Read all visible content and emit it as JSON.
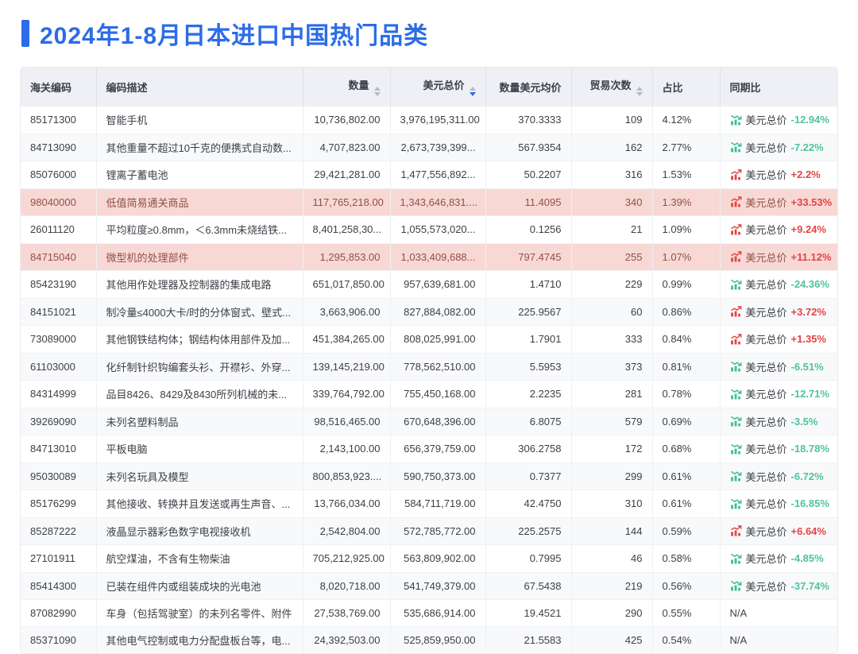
{
  "page": {
    "title": "2024年1-8月日本进口中国热门品类"
  },
  "colors": {
    "accent": "#2b6ce8",
    "positive_red": "#e24545",
    "negative_green": "#4fc49a",
    "highlight_row_bg": "#f8d8d4",
    "highlight_row_text": "#915049",
    "header_bg": "#eef0f6"
  },
  "icons": {
    "sort": "sort-arrows-icon",
    "trend_up": "chart-increasing-icon",
    "trend_down": "chart-decreasing-icon"
  },
  "table": {
    "columns": [
      {
        "key": "code",
        "label": "海关编码",
        "sortable": false,
        "sort": "none",
        "align": "left"
      },
      {
        "key": "desc",
        "label": "编码描述",
        "sortable": false,
        "sort": "none",
        "align": "left"
      },
      {
        "key": "qty",
        "label": "数量",
        "sortable": true,
        "sort": "none",
        "align": "right"
      },
      {
        "key": "usd",
        "label": "美元总价",
        "sortable": true,
        "sort": "desc",
        "align": "right"
      },
      {
        "key": "avg",
        "label": "数量美元均价",
        "sortable": false,
        "sort": "none",
        "align": "right"
      },
      {
        "key": "trades",
        "label": "贸易次数",
        "sortable": true,
        "sort": "none",
        "align": "right"
      },
      {
        "key": "share",
        "label": "占比",
        "sortable": false,
        "sort": "none",
        "align": "left"
      },
      {
        "key": "yoy",
        "label": "同期比",
        "sortable": false,
        "sort": "none",
        "align": "left"
      }
    ],
    "yoy_metric_label": "美元总价",
    "na_label": "N/A",
    "rows": [
      {
        "code": "85171300",
        "desc": "智能手机",
        "qty": "10,736,802.00",
        "usd": "3,976,195,311.00",
        "avg": "370.3333",
        "trades": "109",
        "share": "4.12%",
        "trend": "down",
        "yoy": "-12.94%",
        "highlight": false
      },
      {
        "code": "84713090",
        "desc": "其他重量不超过10千克的便携式自动数...",
        "qty": "4,707,823.00",
        "usd": "2,673,739,399...",
        "avg": "567.9354",
        "trades": "162",
        "share": "2.77%",
        "trend": "down",
        "yoy": "-7.22%",
        "highlight": false
      },
      {
        "code": "85076000",
        "desc": "锂离子蓄电池",
        "qty": "29,421,281.00",
        "usd": "1,477,556,892...",
        "avg": "50.2207",
        "trades": "316",
        "share": "1.53%",
        "trend": "up",
        "yoy": "+2.2%",
        "highlight": false
      },
      {
        "code": "98040000",
        "desc": "低值简易通关商品",
        "qty": "117,765,218.00",
        "usd": "1,343,646,831....",
        "avg": "11.4095",
        "trades": "340",
        "share": "1.39%",
        "trend": "up",
        "yoy": "+33.53%",
        "highlight": true
      },
      {
        "code": "26011120",
        "desc": "平均粒度≥0.8mm，＜6.3mm未烧结铁...",
        "qty": "8,401,258,30...",
        "usd": "1,055,573,020...",
        "avg": "0.1256",
        "trades": "21",
        "share": "1.09%",
        "trend": "up",
        "yoy": "+9.24%",
        "highlight": false
      },
      {
        "code": "84715040",
        "desc": "微型机的处理部件",
        "qty": "1,295,853.00",
        "usd": "1,033,409,688...",
        "avg": "797.4745",
        "trades": "255",
        "share": "1.07%",
        "trend": "up",
        "yoy": "+11.12%",
        "highlight": true
      },
      {
        "code": "85423190",
        "desc": "其他用作处理器及控制器的集成电路",
        "qty": "651,017,850.00",
        "usd": "957,639,681.00",
        "avg": "1.4710",
        "trades": "229",
        "share": "0.99%",
        "trend": "down",
        "yoy": "-24.36%",
        "highlight": false
      },
      {
        "code": "84151021",
        "desc": "制冷量≤4000大卡/时的分体窗式、壁式...",
        "qty": "3,663,906.00",
        "usd": "827,884,082.00",
        "avg": "225.9567",
        "trades": "60",
        "share": "0.86%",
        "trend": "up",
        "yoy": "+3.72%",
        "highlight": false
      },
      {
        "code": "73089000",
        "desc": "其他钢铁结构体；钢结构体用部件及加...",
        "qty": "451,384,265.00",
        "usd": "808,025,991.00",
        "avg": "1.7901",
        "trades": "333",
        "share": "0.84%",
        "trend": "up",
        "yoy": "+1.35%",
        "highlight": false
      },
      {
        "code": "61103000",
        "desc": "化纤制针织钩编套头衫、开襟衫、外穿...",
        "qty": "139,145,219.00",
        "usd": "778,562,510.00",
        "avg": "5.5953",
        "trades": "373",
        "share": "0.81%",
        "trend": "down",
        "yoy": "-6.51%",
        "highlight": false
      },
      {
        "code": "84314999",
        "desc": "品目8426、8429及8430所列机械的未...",
        "qty": "339,764,792.00",
        "usd": "755,450,168.00",
        "avg": "2.2235",
        "trades": "281",
        "share": "0.78%",
        "trend": "down",
        "yoy": "-12.71%",
        "highlight": false
      },
      {
        "code": "39269090",
        "desc": "未列名塑料制品",
        "qty": "98,516,465.00",
        "usd": "670,648,396.00",
        "avg": "6.8075",
        "trades": "579",
        "share": "0.69%",
        "trend": "down",
        "yoy": "-3.5%",
        "highlight": false
      },
      {
        "code": "84713010",
        "desc": "平板电脑",
        "qty": "2,143,100.00",
        "usd": "656,379,759.00",
        "avg": "306.2758",
        "trades": "172",
        "share": "0.68%",
        "trend": "down",
        "yoy": "-18.78%",
        "highlight": false
      },
      {
        "code": "95030089",
        "desc": "未列名玩具及模型",
        "qty": "800,853,923....",
        "usd": "590,750,373.00",
        "avg": "0.7377",
        "trades": "299",
        "share": "0.61%",
        "trend": "down",
        "yoy": "-6.72%",
        "highlight": false
      },
      {
        "code": "85176299",
        "desc": "其他接收、转换并且发送或再生声音、...",
        "qty": "13,766,034.00",
        "usd": "584,711,719.00",
        "avg": "42.4750",
        "trades": "310",
        "share": "0.61%",
        "trend": "down",
        "yoy": "-16.85%",
        "highlight": false
      },
      {
        "code": "85287222",
        "desc": "液晶显示器彩色数字电视接收机",
        "qty": "2,542,804.00",
        "usd": "572,785,772.00",
        "avg": "225.2575",
        "trades": "144",
        "share": "0.59%",
        "trend": "up",
        "yoy": "+6.64%",
        "highlight": false
      },
      {
        "code": "27101911",
        "desc": "航空煤油，不含有生物柴油",
        "qty": "705,212,925.00",
        "usd": "563,809,902.00",
        "avg": "0.7995",
        "trades": "46",
        "share": "0.58%",
        "trend": "down",
        "yoy": "-4.85%",
        "highlight": false
      },
      {
        "code": "85414300",
        "desc": "已装在组件内或组装成块的光电池",
        "qty": "8,020,718.00",
        "usd": "541,749,379.00",
        "avg": "67.5438",
        "trades": "219",
        "share": "0.56%",
        "trend": "down",
        "yoy": "-37.74%",
        "highlight": false
      },
      {
        "code": "87082990",
        "desc": "车身（包括驾驶室）的未列名零件、附件",
        "qty": "27,538,769.00",
        "usd": "535,686,914.00",
        "avg": "19.4521",
        "trades": "290",
        "share": "0.55%",
        "trend": "na",
        "yoy": null,
        "highlight": false
      },
      {
        "code": "85371090",
        "desc": "其他电气控制或电力分配盘板台等，电...",
        "qty": "24,392,503.00",
        "usd": "525,859,950.00",
        "avg": "21.5583",
        "trades": "425",
        "share": "0.54%",
        "trend": "na",
        "yoy": null,
        "highlight": false
      }
    ]
  }
}
